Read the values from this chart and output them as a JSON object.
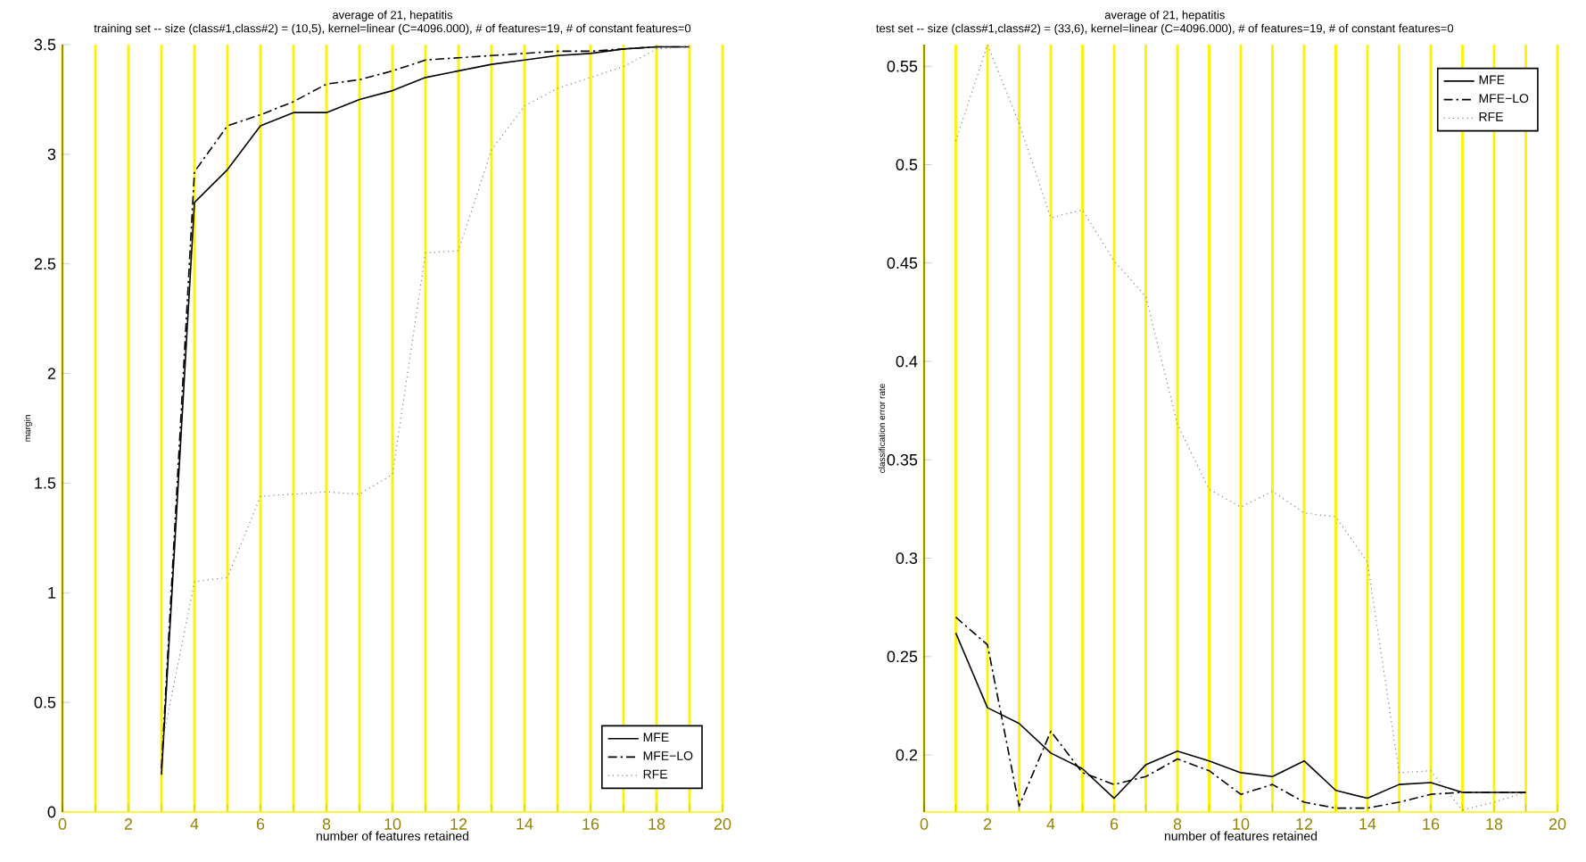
{
  "chart_data": [
    {
      "type": "line",
      "title": "average of 21, hepatitis",
      "subtitle": "training set -- size (class#1,class#2) = (10,5), kernel=linear (C=4096.000), # of features=19, # of constant features=0",
      "xlabel": "number of features retained",
      "ylabel": "margin",
      "x": [
        3,
        4,
        5,
        6,
        7,
        8,
        9,
        10,
        11,
        12,
        13,
        14,
        15,
        16,
        17,
        18,
        19
      ],
      "xlim": [
        0,
        20
      ],
      "ylim": [
        0,
        3.5
      ],
      "xticks": [
        0,
        {
          "value": 1,
          "label": null
        },
        2,
        {
          "value": 3,
          "label": null
        },
        4,
        {
          "value": 5,
          "label": null
        },
        6,
        {
          "value": 7,
          "label": null
        },
        8,
        {
          "value": 9,
          "label": null
        },
        10,
        {
          "value": 11,
          "label": null
        },
        12,
        {
          "value": 13,
          "label": null
        },
        14,
        {
          "value": 15,
          "label": null
        },
        16,
        {
          "value": 17,
          "label": null
        },
        18,
        {
          "value": 19,
          "label": null
        },
        20
      ],
      "yticks": [
        0,
        0.5,
        1,
        1.5,
        2,
        2.5,
        3,
        3.5
      ],
      "grid": "x",
      "legend": "bottom right",
      "marker": "none",
      "series": [
        {
          "name": "MFE",
          "color": "#000000",
          "line_style": "solid",
          "values": [
            0.17,
            2.78,
            2.93,
            3.13,
            3.19,
            3.19,
            3.25,
            3.29,
            3.35,
            3.38,
            3.41,
            3.43,
            3.45,
            3.46,
            3.48,
            3.49,
            3.49
          ]
        },
        {
          "name": "MFE−LO",
          "color": "#000000",
          "line_style": "dashed",
          "values": [
            0.2,
            2.92,
            3.13,
            3.18,
            3.24,
            3.32,
            3.34,
            3.38,
            3.43,
            3.44,
            3.45,
            3.46,
            3.47,
            3.47,
            3.48,
            3.49,
            3.49
          ]
        },
        {
          "name": "RFE",
          "color": "#808080",
          "line_style": "dotted",
          "values": [
            0.3,
            1.05,
            1.07,
            1.44,
            1.45,
            1.46,
            1.45,
            1.54,
            2.55,
            2.56,
            3.02,
            3.22,
            3.3,
            3.35,
            3.4,
            3.48,
            3.49
          ]
        }
      ]
    },
    {
      "type": "line",
      "title": "average of 21, hepatitis",
      "subtitle": "test set -- size (class#1,class#2) = (33,6), kernel=linear (C=4096.000), # of features=19, # of constant features=0",
      "xlabel": "number of features retained",
      "ylabel": "classification error rate",
      "x": [
        1,
        2,
        3,
        4,
        5,
        6,
        7,
        8,
        9,
        10,
        11,
        12,
        13,
        14,
        15,
        16,
        17,
        18,
        19
      ],
      "xlim": [
        0,
        20
      ],
      "ylim": [
        0.171,
        0.561
      ],
      "xticks": [
        0,
        {
          "value": 1,
          "label": null
        },
        2,
        {
          "value": 3,
          "label": null
        },
        4,
        {
          "value": 5,
          "label": null
        },
        6,
        {
          "value": 7,
          "label": null
        },
        8,
        {
          "value": 9,
          "label": null
        },
        10,
        {
          "value": 11,
          "label": null
        },
        12,
        {
          "value": 13,
          "label": null
        },
        14,
        {
          "value": 15,
          "label": null
        },
        16,
        {
          "value": 17,
          "label": null
        },
        18,
        {
          "value": 19,
          "label": null
        },
        20
      ],
      "yticks": [
        0.2,
        0.25,
        0.3,
        0.35,
        0.4,
        0.45,
        0.5,
        0.55
      ],
      "grid": "x",
      "legend": "top right",
      "marker": "none",
      "series": [
        {
          "name": "MFE",
          "color": "#000000",
          "line_style": "solid",
          "values": [
            0.262,
            0.224,
            0.216,
            0.201,
            0.193,
            0.178,
            0.195,
            0.202,
            0.197,
            0.191,
            0.189,
            0.197,
            0.182,
            0.178,
            0.185,
            0.186,
            0.181,
            0.181,
            0.181
          ]
        },
        {
          "name": "MFE−LO",
          "color": "#000000",
          "line_style": "dashed",
          "values": [
            0.27,
            0.256,
            0.174,
            0.212,
            0.191,
            0.185,
            0.189,
            0.198,
            0.192,
            0.18,
            0.185,
            0.176,
            0.173,
            0.173,
            0.176,
            0.18,
            0.181,
            0.181,
            0.181
          ]
        },
        {
          "name": "RFE",
          "color": "#808080",
          "line_style": "dotted",
          "values": [
            0.512,
            0.561,
            0.521,
            0.473,
            0.477,
            0.451,
            0.433,
            0.368,
            0.335,
            0.326,
            0.334,
            0.323,
            0.321,
            0.298,
            0.191,
            0.192,
            0.172,
            0.176,
            0.181
          ]
        }
      ]
    }
  ]
}
